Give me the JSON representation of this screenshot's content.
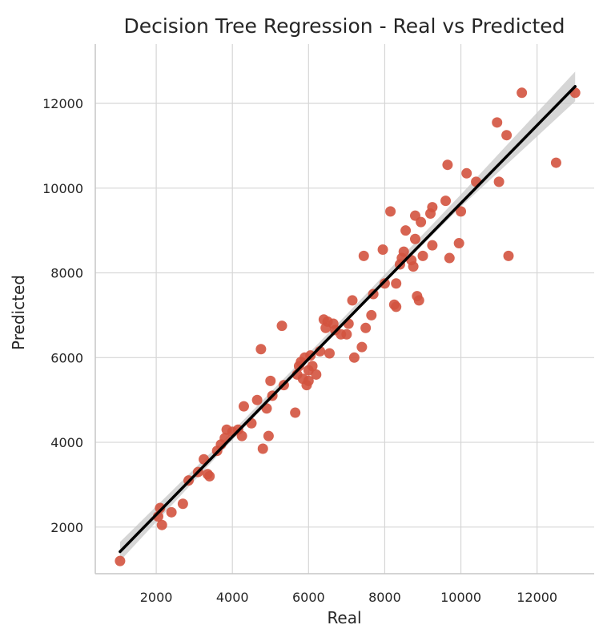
{
  "chart_data": {
    "type": "scatter",
    "title": "Decision Tree Regression - Real vs Predicted",
    "xlabel": "Real",
    "ylabel": "Predicted",
    "xlim": [
      400,
      13500
    ],
    "ylim": [
      900,
      13400
    ],
    "x_ticks": [
      2000,
      4000,
      6000,
      8000,
      10000,
      12000
    ],
    "y_ticks": [
      2000,
      4000,
      6000,
      8000,
      10000,
      12000
    ],
    "x_tick_labels": [
      "2000",
      "4000",
      "6000",
      "8000",
      "10000",
      "12000"
    ],
    "y_tick_labels": [
      "2000",
      "4000",
      "6000",
      "8000",
      "10000",
      "12000"
    ],
    "grid": true,
    "colors": {
      "points": "#d3533f",
      "regression_line": "#000000",
      "confidence_band": "#c8c8c8",
      "grid": "#d6d6d6"
    },
    "regression_line": {
      "x": [
        1050,
        13000
      ],
      "y": [
        1420,
        12400
      ]
    },
    "confidence_band": [
      {
        "x": 1050,
        "lower": 1200,
        "upper": 1650
      },
      {
        "x": 4000,
        "lower": 4060,
        "upper": 4260
      },
      {
        "x": 7000,
        "lower": 6860,
        "upper": 7020
      },
      {
        "x": 10000,
        "lower": 9560,
        "upper": 9850
      },
      {
        "x": 13000,
        "lower": 12050,
        "upper": 12750
      }
    ],
    "points": [
      [
        1050,
        1200
      ],
      [
        2050,
        2250
      ],
      [
        2100,
        2450
      ],
      [
        2150,
        2050
      ],
      [
        2400,
        2350
      ],
      [
        2700,
        2550
      ],
      [
        2850,
        3100
      ],
      [
        3100,
        3300
      ],
      [
        3250,
        3600
      ],
      [
        3350,
        3250
      ],
      [
        3400,
        3200
      ],
      [
        3600,
        3800
      ],
      [
        3700,
        3950
      ],
      [
        3800,
        4100
      ],
      [
        3850,
        4300
      ],
      [
        4000,
        4250
      ],
      [
        4150,
        4300
      ],
      [
        4250,
        4150
      ],
      [
        4300,
        4850
      ],
      [
        4500,
        4450
      ],
      [
        4650,
        5000
      ],
      [
        4750,
        6200
      ],
      [
        4800,
        3850
      ],
      [
        4900,
        4800
      ],
      [
        4950,
        4150
      ],
      [
        5000,
        5450
      ],
      [
        5050,
        5100
      ],
      [
        5300,
        6750
      ],
      [
        5350,
        5350
      ],
      [
        5650,
        4700
      ],
      [
        5700,
        5600
      ],
      [
        5750,
        5800
      ],
      [
        5800,
        5900
      ],
      [
        5850,
        5500
      ],
      [
        5900,
        6000
      ],
      [
        5950,
        5350
      ],
      [
        6000,
        5450
      ],
      [
        6000,
        5700
      ],
      [
        6050,
        6050
      ],
      [
        6100,
        5800
      ],
      [
        6200,
        5600
      ],
      [
        6300,
        6150
      ],
      [
        6400,
        6900
      ],
      [
        6450,
        6700
      ],
      [
        6500,
        6850
      ],
      [
        6550,
        6100
      ],
      [
        6650,
        6800
      ],
      [
        6700,
        6650
      ],
      [
        6850,
        6550
      ],
      [
        7000,
        6550
      ],
      [
        7050,
        6800
      ],
      [
        7150,
        7350
      ],
      [
        7200,
        6000
      ],
      [
        7400,
        6250
      ],
      [
        7450,
        8400
      ],
      [
        7500,
        6700
      ],
      [
        7650,
        7000
      ],
      [
        7700,
        7500
      ],
      [
        7950,
        8550
      ],
      [
        8000,
        7750
      ],
      [
        8150,
        9450
      ],
      [
        8250,
        7250
      ],
      [
        8300,
        7200
      ],
      [
        8300,
        7750
      ],
      [
        8400,
        8200
      ],
      [
        8450,
        8350
      ],
      [
        8500,
        8500
      ],
      [
        8550,
        9000
      ],
      [
        8700,
        8300
      ],
      [
        8750,
        8150
      ],
      [
        8800,
        8800
      ],
      [
        8800,
        9350
      ],
      [
        8850,
        7450
      ],
      [
        8900,
        7350
      ],
      [
        8950,
        9200
      ],
      [
        9000,
        8400
      ],
      [
        9200,
        9400
      ],
      [
        9250,
        9550
      ],
      [
        9250,
        8650
      ],
      [
        9600,
        9700
      ],
      [
        9650,
        10550
      ],
      [
        9700,
        8350
      ],
      [
        9950,
        8700
      ],
      [
        10000,
        9450
      ],
      [
        10150,
        10350
      ],
      [
        10400,
        10150
      ],
      [
        10950,
        11550
      ],
      [
        11000,
        10150
      ],
      [
        11200,
        11250
      ],
      [
        11250,
        8400
      ],
      [
        11600,
        12250
      ],
      [
        12500,
        10600
      ],
      [
        13000,
        12250
      ]
    ]
  }
}
